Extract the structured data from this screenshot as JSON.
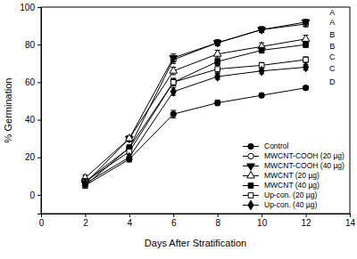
{
  "chart_data": {
    "type": "line",
    "x_label": "Days After Stratification",
    "y_label": "% Germination",
    "x": [
      2,
      4,
      6,
      8,
      10,
      12
    ],
    "xlim": [
      0,
      14
    ],
    "xticks": [
      0,
      2,
      4,
      6,
      8,
      10,
      12,
      14
    ],
    "ylim": [
      -10,
      100
    ],
    "yticks": [
      0,
      20,
      40,
      60,
      80,
      100
    ],
    "legend": "lower right",
    "series": [
      {
        "name": "Control",
        "color": "#000000",
        "marker": "circle",
        "values": [
          5,
          19,
          43,
          49,
          53,
          57
        ],
        "errors": [
          1.5,
          1.5,
          2,
          1.5,
          1,
          1
        ]
      },
      {
        "name": "MWCNT-COOH (20 µg)",
        "color": "#000000",
        "marker": "circle-open",
        "values": [
          5,
          25,
          72,
          81,
          88,
          91
        ],
        "errors": [
          1.5,
          1.5,
          2,
          1.5,
          1.5,
          1.5
        ]
      },
      {
        "name": "MWCNT-COOH (40 µg)",
        "color": "#000000",
        "marker": "triangle-down",
        "values": [
          6,
          30,
          73,
          81,
          88,
          92
        ],
        "errors": [
          1.5,
          1.5,
          2,
          1.5,
          1.5,
          1.5
        ]
      },
      {
        "name": "MWCNT (20 µg)",
        "color": "#000000",
        "marker": "triangle-up-open",
        "values": [
          9,
          30,
          66,
          75,
          79,
          83
        ],
        "errors": [
          1.5,
          1.5,
          2,
          2,
          2,
          2
        ]
      },
      {
        "name": "MWCNT (40 µg)",
        "color": "#000000",
        "marker": "square",
        "values": [
          7,
          25,
          60,
          71,
          77,
          80
        ],
        "errors": [
          1.5,
          1.5,
          2,
          1.5,
          1.5,
          1.5
        ]
      },
      {
        "name": "Up-con. (20 µg)",
        "color": "#000000",
        "marker": "square-open",
        "values": [
          7,
          23,
          60,
          67,
          69,
          72
        ],
        "errors": [
          1.5,
          1.5,
          2,
          2,
          1.5,
          1.5
        ]
      },
      {
        "name": "Up-con. (40 µg)",
        "color": "#000000",
        "marker": "diamond",
        "values": [
          6,
          20,
          55,
          63,
          66,
          68
        ],
        "errors": [
          1.5,
          1.5,
          2,
          1.5,
          1.5,
          1.5
        ]
      }
    ],
    "annotations": [
      {
        "text": "A",
        "x": 13.2,
        "y": 97
      },
      {
        "text": "A",
        "x": 13.2,
        "y": 91.5
      },
      {
        "text": "B",
        "x": 13.2,
        "y": 85
      },
      {
        "text": "B",
        "x": 13.2,
        "y": 79
      },
      {
        "text": "C",
        "x": 13.2,
        "y": 73
      },
      {
        "text": "C",
        "x": 13.2,
        "y": 67
      },
      {
        "text": "D",
        "x": 13.2,
        "y": 60
      }
    ]
  }
}
